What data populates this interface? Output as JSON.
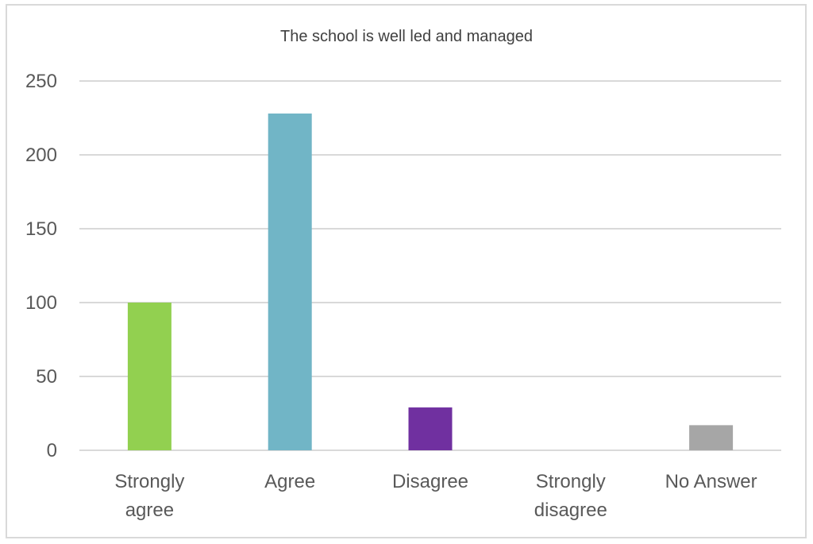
{
  "chart_data": {
    "type": "bar",
    "title": "The school is well led and managed",
    "xlabel": "",
    "ylabel": "",
    "categories": [
      [
        "Strongly",
        "agree"
      ],
      [
        "Agree"
      ],
      [
        "Disagree"
      ],
      [
        "Strongly",
        "disagree"
      ],
      [
        "No Answer"
      ]
    ],
    "values": [
      100,
      228,
      29,
      0,
      17
    ],
    "colors": [
      "#92d050",
      "#71b5c6",
      "#7030a0",
      "#92d050",
      "#a6a6a6"
    ],
    "ylim": [
      0,
      250
    ],
    "yticks": [
      0,
      50,
      100,
      150,
      200,
      250
    ],
    "grid": true,
    "legend": "none"
  }
}
